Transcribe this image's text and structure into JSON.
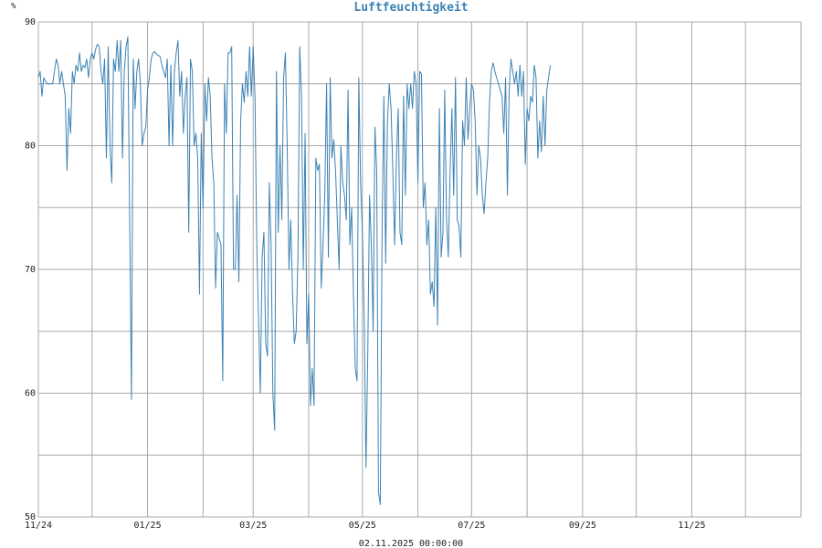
{
  "chart_data": {
    "type": "line",
    "title": "Luftfeuchtigkeit",
    "ylabel": "%",
    "footer": "02.11.2025 00:00:00",
    "ylim": [
      50,
      90
    ],
    "yticks": [
      50,
      60,
      70,
      80,
      90
    ],
    "xlim": [
      "2024-11-01",
      "2026-01-01"
    ],
    "xticks": [
      {
        "date": "2024-11-01",
        "label": "11/24"
      },
      {
        "date": "2025-01-01",
        "label": "01/25"
      },
      {
        "date": "2025-03-01",
        "label": "03/25"
      },
      {
        "date": "2025-05-01",
        "label": "05/25"
      },
      {
        "date": "2025-07-01",
        "label": "07/25"
      },
      {
        "date": "2025-09-01",
        "label": "09/25"
      },
      {
        "date": "2025-11-01",
        "label": "11/25"
      }
    ],
    "grid": true,
    "legend": "none",
    "color": "#3c82b4",
    "series": [
      {
        "start": "2024-11-01",
        "step_days": 1,
        "values": [
          85.5,
          86.0,
          84.0,
          85.5,
          85.2,
          85.0,
          85.0,
          85.0,
          85.0,
          86.0,
          87.0,
          86.5,
          85.0,
          86.0,
          85.0,
          84.0,
          78.0,
          83.0,
          81.0,
          86.0,
          85.0,
          86.5,
          86.0,
          87.5,
          86.0,
          86.5,
          86.3,
          87.0,
          85.5,
          87.0,
          87.5,
          87.0,
          87.8,
          88.2,
          88.0,
          86.0,
          85.0,
          87.0,
          79.0,
          88.0,
          80.0,
          77.0,
          87.0,
          86.0,
          88.5,
          86.0,
          88.5,
          79.0,
          86.0,
          88.0,
          88.8,
          74.0,
          59.5,
          87.0,
          83.0,
          86.0,
          87.0,
          85.0,
          80.0,
          81.0,
          81.5,
          84.5,
          85.5,
          87.0,
          87.5,
          87.6,
          87.4,
          87.3,
          87.2,
          86.5,
          86.0,
          85.5,
          87.0,
          80.0,
          86.5,
          80.0,
          86.0,
          87.5,
          88.5,
          84.0,
          86.0,
          81.0,
          84.0,
          85.5,
          73.0,
          87.0,
          86.0,
          80.0,
          81.0,
          79.0,
          68.0,
          81.0,
          75.0,
          85.0,
          82.0,
          85.5,
          84.0,
          79.0,
          77.0,
          68.5,
          73.0,
          72.5,
          72.0,
          61.0,
          85.0,
          81.0,
          87.5,
          87.5,
          88.0,
          70.0,
          70.0,
          76.0,
          69.0,
          82.0,
          85.0,
          83.5,
          86.0,
          84.0,
          88.0,
          84.0,
          88.0,
          84.0,
          72.0,
          66.0,
          60.0,
          71.0,
          73.0,
          64.0,
          63.0,
          77.0,
          72.0,
          60.0,
          57.0,
          86.0,
          73.0,
          80.0,
          74.0,
          85.5,
          87.5,
          80.0,
          70.0,
          74.0,
          68.0,
          64.0,
          65.0,
          71.0,
          88.0,
          84.0,
          70.0,
          81.0,
          64.0,
          68.0,
          59.0,
          62.0,
          59.0,
          79.0,
          78.0,
          78.5,
          68.5,
          72.0,
          76.0,
          85.0,
          71.0,
          85.5,
          79.0,
          80.5,
          78.0,
          74.0,
          70.0,
          80.0,
          77.0,
          76.0,
          74.0,
          84.5,
          72.0,
          75.0,
          68.0,
          62.0,
          61.0,
          85.5,
          77.0,
          73.0,
          66.0,
          54.0,
          63.0,
          76.0,
          72.0,
          65.0,
          81.5,
          78.0,
          52.0,
          51.0,
          73.0,
          84.0,
          70.5,
          82.0,
          85.0,
          83.0,
          78.0,
          72.0,
          79.0,
          83.0,
          73.0,
          72.0,
          84.0,
          76.0,
          85.0,
          83.0,
          85.0,
          83.0,
          86.0,
          85.0,
          77.0,
          86.0,
          85.8,
          75.0,
          77.0,
          72.0,
          74.0,
          68.0,
          69.0,
          67.0,
          75.0,
          65.5,
          83.0,
          71.0,
          73.0,
          84.5,
          74.0,
          71.0,
          78.0,
          83.0,
          76.0,
          85.5,
          74.0,
          73.5,
          71.0,
          82.0,
          80.0,
          85.5,
          80.5,
          83.0,
          85.0,
          84.5,
          82.0,
          76.0,
          80.0,
          79.0,
          76.0,
          74.5,
          77.0,
          79.0,
          83.5,
          86.0,
          86.7,
          86.0,
          85.5,
          85.0,
          84.5,
          84.0,
          81.0,
          85.5,
          76.0,
          84.5,
          87.0,
          86.0,
          85.0,
          86.0,
          84.0,
          86.5,
          84.0,
          86.0,
          78.5,
          83.0,
          82.0,
          84.0,
          83.5,
          86.5,
          85.5,
          79.0,
          82.0,
          79.5,
          84.0,
          80.0,
          84.5,
          85.5,
          86.5
        ]
      }
    ]
  }
}
